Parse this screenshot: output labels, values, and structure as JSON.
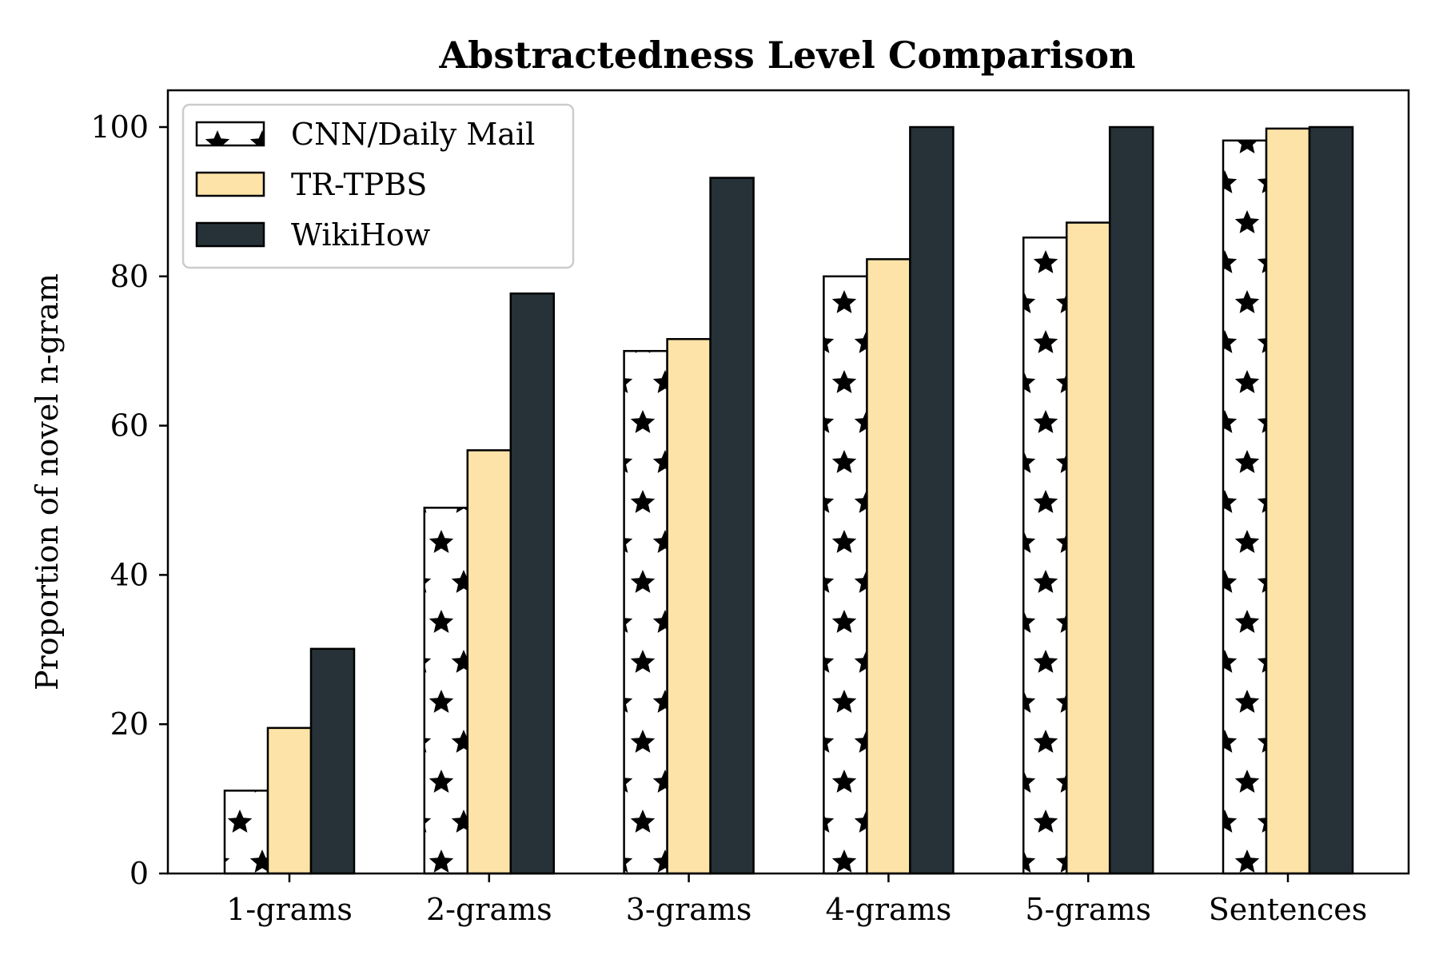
{
  "chart_data": {
    "type": "bar",
    "title": "Abstractedness Level Comparison",
    "xlabel": "",
    "ylabel": "Proportion of novel n-gram",
    "ylim": [
      0,
      105
    ],
    "yticks": [
      0,
      20,
      40,
      60,
      80,
      100
    ],
    "grid": false,
    "legend_position": "top-left",
    "categories": [
      "1-grams",
      "2-grams",
      "3-grams",
      "4-grams",
      "5-grams",
      "Sentences"
    ],
    "series": [
      {
        "name": "CNN/Daily Mail",
        "values": [
          11.1,
          49.0,
          70.0,
          80.0,
          85.2,
          98.2
        ],
        "color": "#ffffff",
        "pattern": "stars"
      },
      {
        "name": "TR-TPBS",
        "values": [
          19.5,
          56.7,
          71.6,
          82.3,
          87.2,
          99.8
        ],
        "color": "#fde3a7",
        "pattern": "none"
      },
      {
        "name": "WikiHow",
        "values": [
          30.1,
          77.7,
          93.2,
          100.0,
          100.0,
          100.0
        ],
        "color": "#263238",
        "pattern": "none"
      }
    ],
    "tick_labels": [
      "0",
      "20",
      "40",
      "60",
      "80",
      "100"
    ]
  }
}
